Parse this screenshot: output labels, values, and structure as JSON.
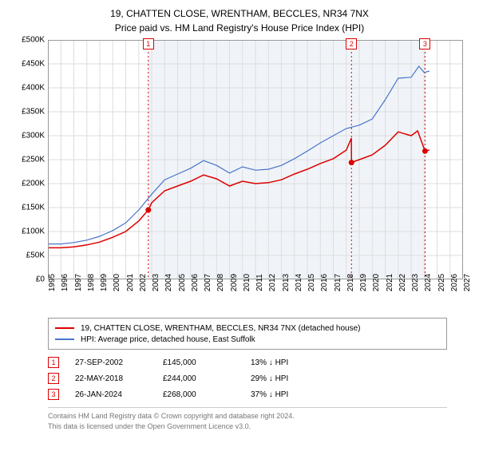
{
  "title_line1": "19, CHATTEN CLOSE, WRENTHAM, BECCLES, NR34 7NX",
  "title_line2": "Price paid vs. HM Land Registry's House Price Index (HPI)",
  "chart": {
    "type": "line",
    "background_color": "#ffffff",
    "grid_color": "#dddddd",
    "shaded_start_year": 2002.74,
    "shaded_end_year": 2024.07,
    "shaded_color": "#f0f4f8",
    "x_years": [
      1995,
      1996,
      1997,
      1998,
      1999,
      2000,
      2001,
      2002,
      2003,
      2004,
      2005,
      2006,
      2007,
      2008,
      2009,
      2010,
      2011,
      2012,
      2013,
      2014,
      2015,
      2016,
      2017,
      2018,
      2019,
      2020,
      2021,
      2022,
      2023,
      2024,
      2025,
      2026,
      2027
    ],
    "xlim": [
      1995,
      2027
    ],
    "ylim": [
      0,
      500000
    ],
    "ytick_step": 50000,
    "ytick_labels": [
      "£0",
      "£50K",
      "£100K",
      "£150K",
      "£200K",
      "£250K",
      "£300K",
      "£350K",
      "£400K",
      "£450K",
      "£500K"
    ],
    "title_fontsize": 12,
    "tick_fontsize": 10,
    "series": [
      {
        "name": "property",
        "color": "#dd0000",
        "width": 1.5,
        "points": [
          [
            1995,
            66
          ],
          [
            1996,
            66
          ],
          [
            1997,
            68
          ],
          [
            1998,
            72
          ],
          [
            1999,
            78
          ],
          [
            2000,
            88
          ],
          [
            2001,
            100
          ],
          [
            2002,
            122
          ],
          [
            2002.74,
            145
          ],
          [
            2003,
            160
          ],
          [
            2004,
            185
          ],
          [
            2005,
            195
          ],
          [
            2006,
            205
          ],
          [
            2007,
            218
          ],
          [
            2008,
            210
          ],
          [
            2009,
            195
          ],
          [
            2010,
            205
          ],
          [
            2011,
            200
          ],
          [
            2012,
            202
          ],
          [
            2013,
            208
          ],
          [
            2014,
            220
          ],
          [
            2015,
            230
          ],
          [
            2016,
            242
          ],
          [
            2017,
            252
          ],
          [
            2018,
            270
          ],
          [
            2018.39,
            295
          ],
          [
            2018.4,
            244
          ],
          [
            2019,
            250
          ],
          [
            2020,
            260
          ],
          [
            2021,
            280
          ],
          [
            2022,
            308
          ],
          [
            2023,
            300
          ],
          [
            2023.5,
            310
          ],
          [
            2024.07,
            268
          ],
          [
            2024.4,
            270
          ]
        ]
      },
      {
        "name": "hpi",
        "color": "#4a74c9",
        "width": 1.2,
        "points": [
          [
            1995,
            74
          ],
          [
            1996,
            74
          ],
          [
            1997,
            77
          ],
          [
            1998,
            82
          ],
          [
            1999,
            90
          ],
          [
            2000,
            102
          ],
          [
            2001,
            118
          ],
          [
            2002,
            145
          ],
          [
            2003,
            178
          ],
          [
            2004,
            208
          ],
          [
            2005,
            220
          ],
          [
            2006,
            232
          ],
          [
            2007,
            248
          ],
          [
            2008,
            238
          ],
          [
            2009,
            222
          ],
          [
            2010,
            235
          ],
          [
            2011,
            228
          ],
          [
            2012,
            230
          ],
          [
            2013,
            238
          ],
          [
            2014,
            252
          ],
          [
            2015,
            268
          ],
          [
            2016,
            285
          ],
          [
            2017,
            300
          ],
          [
            2018,
            315
          ],
          [
            2019,
            322
          ],
          [
            2020,
            335
          ],
          [
            2021,
            375
          ],
          [
            2022,
            420
          ],
          [
            2023,
            422
          ],
          [
            2023.6,
            445
          ],
          [
            2024,
            432
          ],
          [
            2024.4,
            435
          ]
        ]
      }
    ],
    "event_markers": [
      {
        "num": "1",
        "year": 2002.74,
        "price": 145
      },
      {
        "num": "2",
        "year": 2018.4,
        "price": 244
      },
      {
        "num": "3",
        "year": 2024.07,
        "price": 268
      }
    ],
    "event_dot_color": "#dd0000",
    "event_line_color": "#dd0000"
  },
  "legend": {
    "items": [
      {
        "color": "#dd0000",
        "label": "19, CHATTEN CLOSE, WRENTHAM, BECCLES, NR34 7NX (detached house)"
      },
      {
        "color": "#4a74c9",
        "label": "HPI: Average price, detached house, East Suffolk"
      }
    ]
  },
  "events_table": [
    {
      "num": "1",
      "date": "27-SEP-2002",
      "price": "£145,000",
      "delta": "13% ↓ HPI"
    },
    {
      "num": "2",
      "date": "22-MAY-2018",
      "price": "£244,000",
      "delta": "29% ↓ HPI"
    },
    {
      "num": "3",
      "date": "26-JAN-2024",
      "price": "£268,000",
      "delta": "37% ↓ HPI"
    }
  ],
  "footer_line1": "Contains HM Land Registry data © Crown copyright and database right 2024.",
  "footer_line2": "This data is licensed under the Open Government Licence v3.0."
}
